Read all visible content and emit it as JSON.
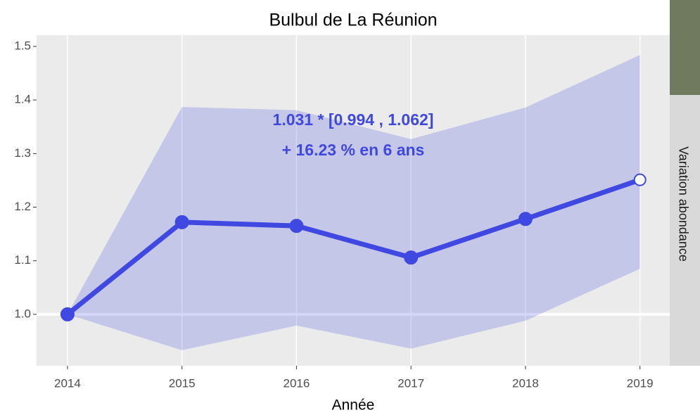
{
  "chart_data": {
    "type": "line",
    "title": "Bulbul de La Réunion",
    "xlabel": "Année",
    "strip_label": "Variation abondance",
    "x": [
      2014,
      2015,
      2016,
      2017,
      2018,
      2019
    ],
    "series": [
      {
        "name": "Variation abondance",
        "color": "#3f48e0",
        "values": [
          1.0,
          1.172,
          1.165,
          1.106,
          1.178,
          1.251
        ]
      }
    ],
    "upper": [
      1.0,
      1.387,
      1.381,
      1.327,
      1.386,
      1.484
    ],
    "lower": [
      1.0,
      0.933,
      0.979,
      0.936,
      0.988,
      1.085
    ],
    "annotations": [
      "1.031 *  [0.994 , 1.062]",
      "+ 16.23 % en 6 ans"
    ],
    "xlim": [
      2013.73,
      2019.26
    ],
    "ylim": [
      0.904,
      1.521
    ],
    "xticks": [
      2014,
      2015,
      2016,
      2017,
      2018,
      2019
    ],
    "yticks": [
      {
        "value": 1.0,
        "label": "1.0"
      },
      1.1,
      1.2,
      1.3,
      1.4,
      1.5
    ],
    "reference_line": 1,
    "grid": "x"
  }
}
